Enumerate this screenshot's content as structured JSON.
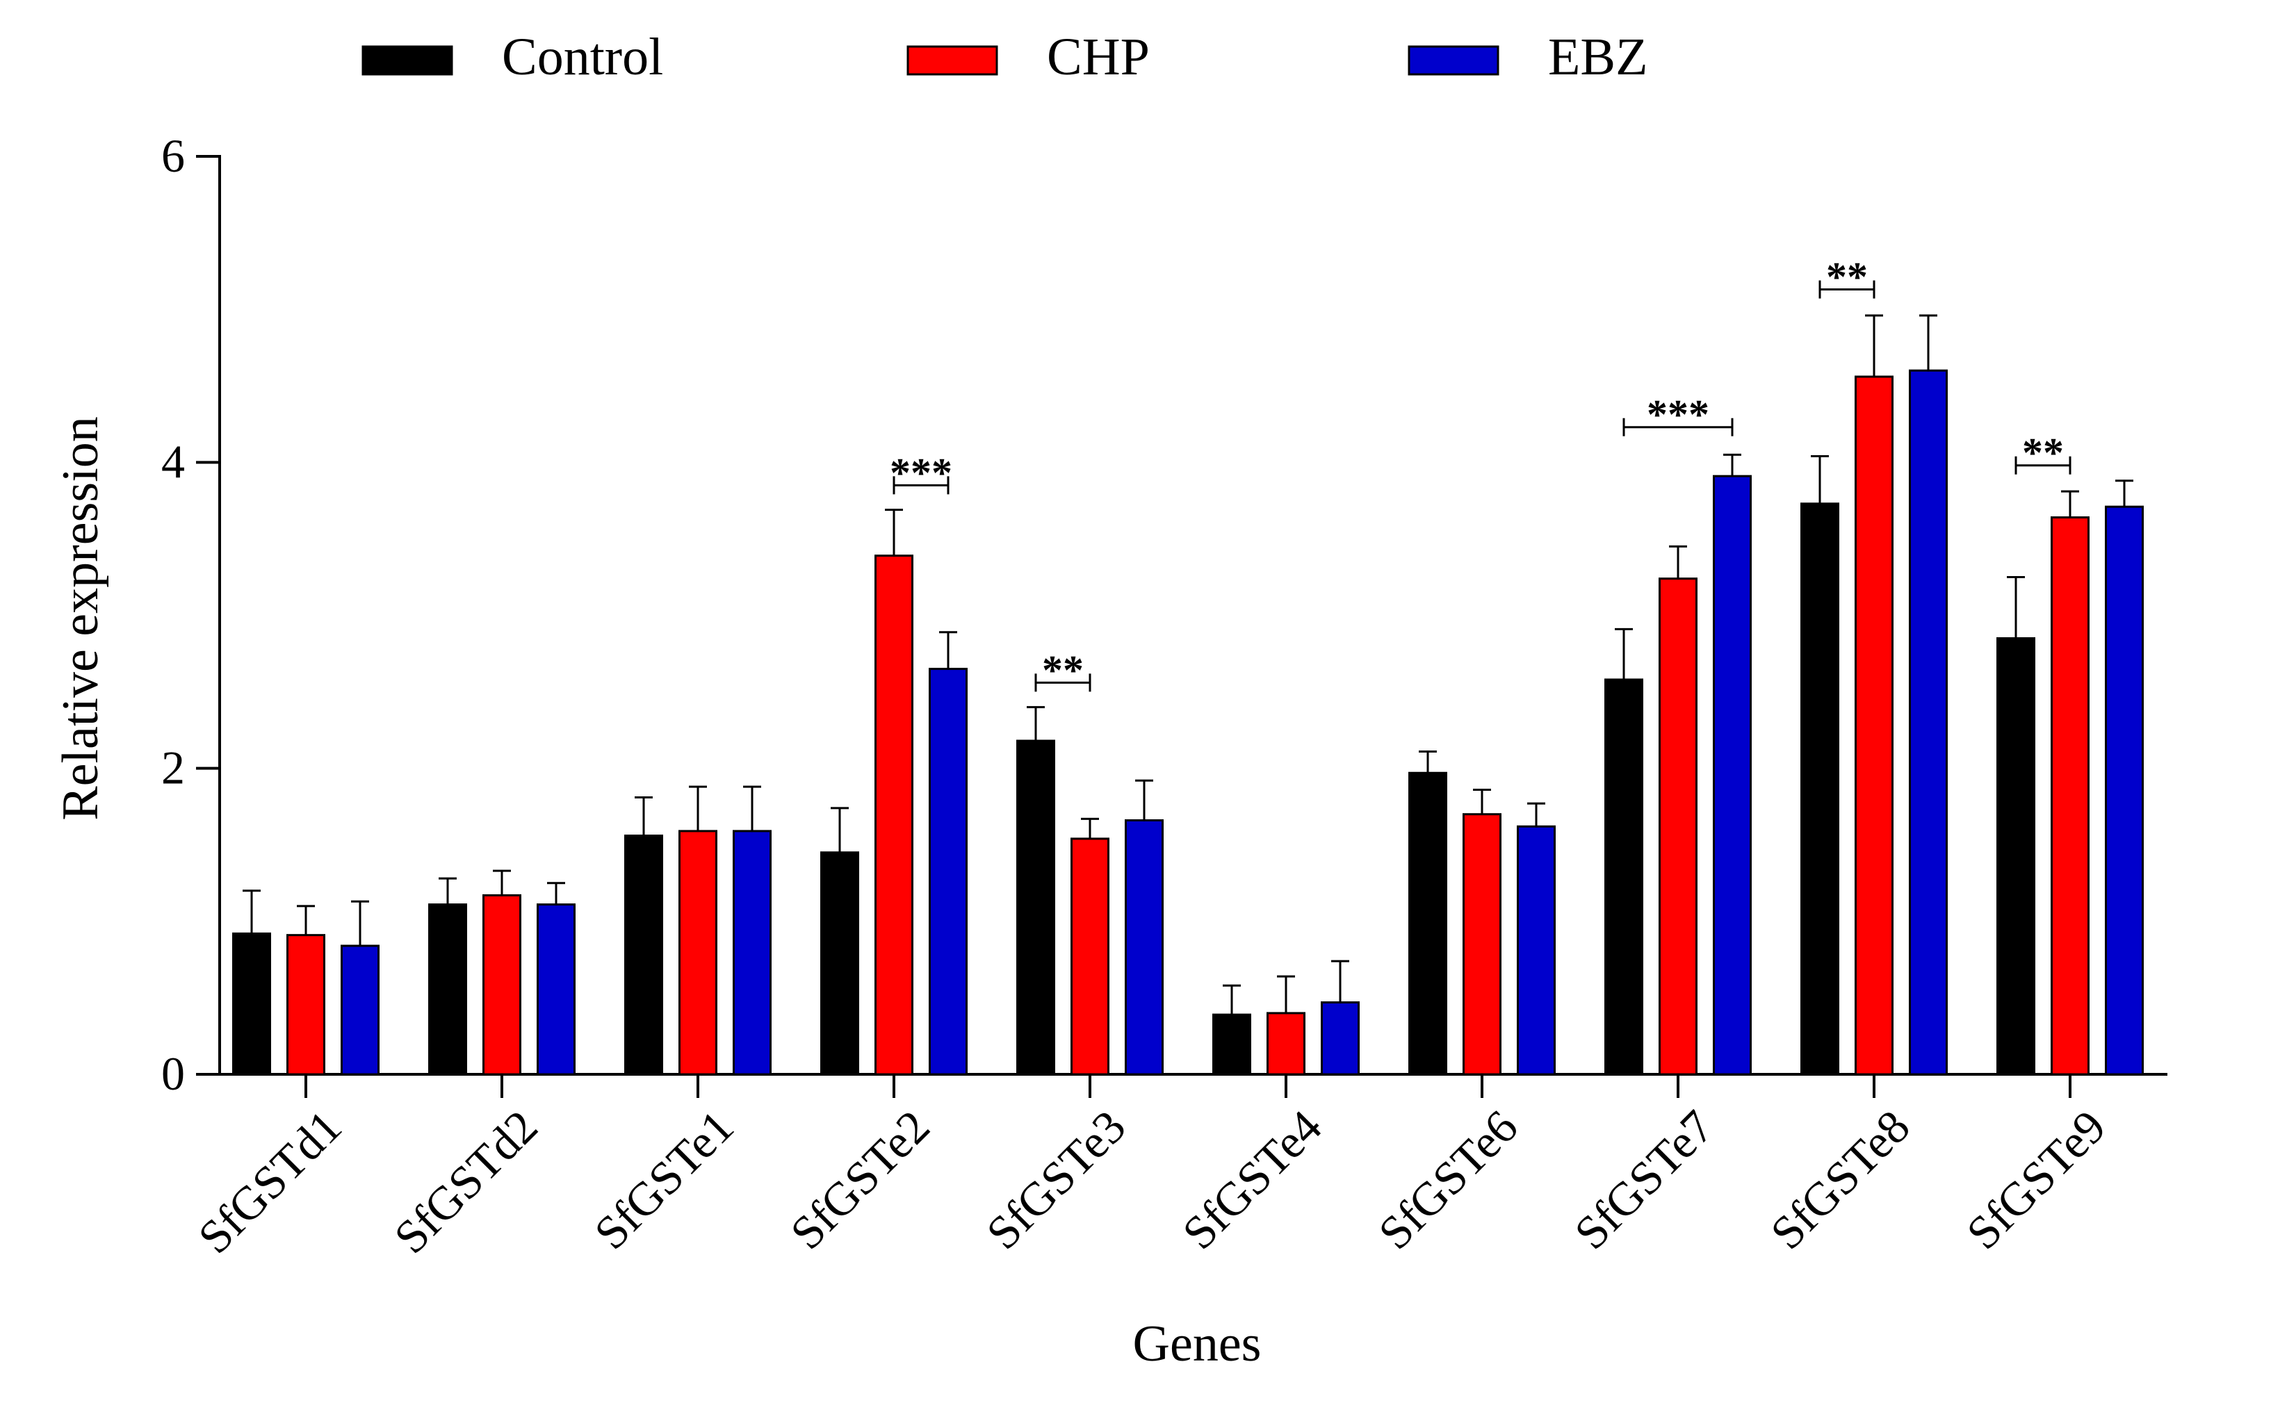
{
  "chart_data": {
    "type": "bar",
    "title": "",
    "xlabel": "Genes",
    "ylabel": "Relative expression",
    "ylim": [
      0,
      6
    ],
    "yticks": [
      0,
      2,
      4,
      6
    ],
    "grid": false,
    "legend_position": "top",
    "categories": [
      "SfGSTd1",
      "SfGSTd2",
      "SfGSTe1",
      "SfGSTe2",
      "SfGSTe3",
      "SfGSTe4",
      "SfGSTe6",
      "SfGSTe7",
      "SfGSTe8",
      "SfGSTe9"
    ],
    "series": [
      {
        "name": "Control",
        "color": "#000000",
        "values": [
          0.92,
          1.11,
          1.56,
          1.45,
          2.18,
          0.39,
          1.97,
          2.58,
          3.73,
          2.85
        ],
        "errors": [
          0.28,
          0.17,
          0.25,
          0.29,
          0.22,
          0.19,
          0.14,
          0.33,
          0.31,
          0.4
        ]
      },
      {
        "name": "CHP",
        "color": "#ff0000",
        "values": [
          0.91,
          1.17,
          1.59,
          3.39,
          1.54,
          0.4,
          1.7,
          3.24,
          4.56,
          3.64
        ],
        "errors": [
          0.19,
          0.16,
          0.29,
          0.3,
          0.13,
          0.24,
          0.16,
          0.21,
          0.4,
          0.17
        ]
      },
      {
        "name": "EBZ",
        "color": "#0000cc",
        "values": [
          0.84,
          1.11,
          1.59,
          2.65,
          1.66,
          0.47,
          1.62,
          3.91,
          4.6,
          3.71
        ],
        "errors": [
          0.29,
          0.14,
          0.29,
          0.24,
          0.26,
          0.27,
          0.15,
          0.14,
          0.36,
          0.17
        ]
      }
    ],
    "annotations": [
      {
        "label": "***",
        "category": "SfGSTe2",
        "from_series": 1,
        "to_series": 2,
        "y": 3.85
      },
      {
        "label": "**",
        "category": "SfGSTe3",
        "from_series": 0,
        "to_series": 1,
        "y": 2.56
      },
      {
        "label": "***",
        "category": "SfGSTe7",
        "from_series": 0,
        "to_series": 2,
        "y": 4.23
      },
      {
        "label": "**",
        "category": "SfGSTe8",
        "from_series": 0,
        "to_series": 1,
        "y": 5.13
      },
      {
        "label": "**",
        "category": "SfGSTe9",
        "from_series": 0,
        "to_series": 1,
        "y": 3.98
      }
    ]
  }
}
